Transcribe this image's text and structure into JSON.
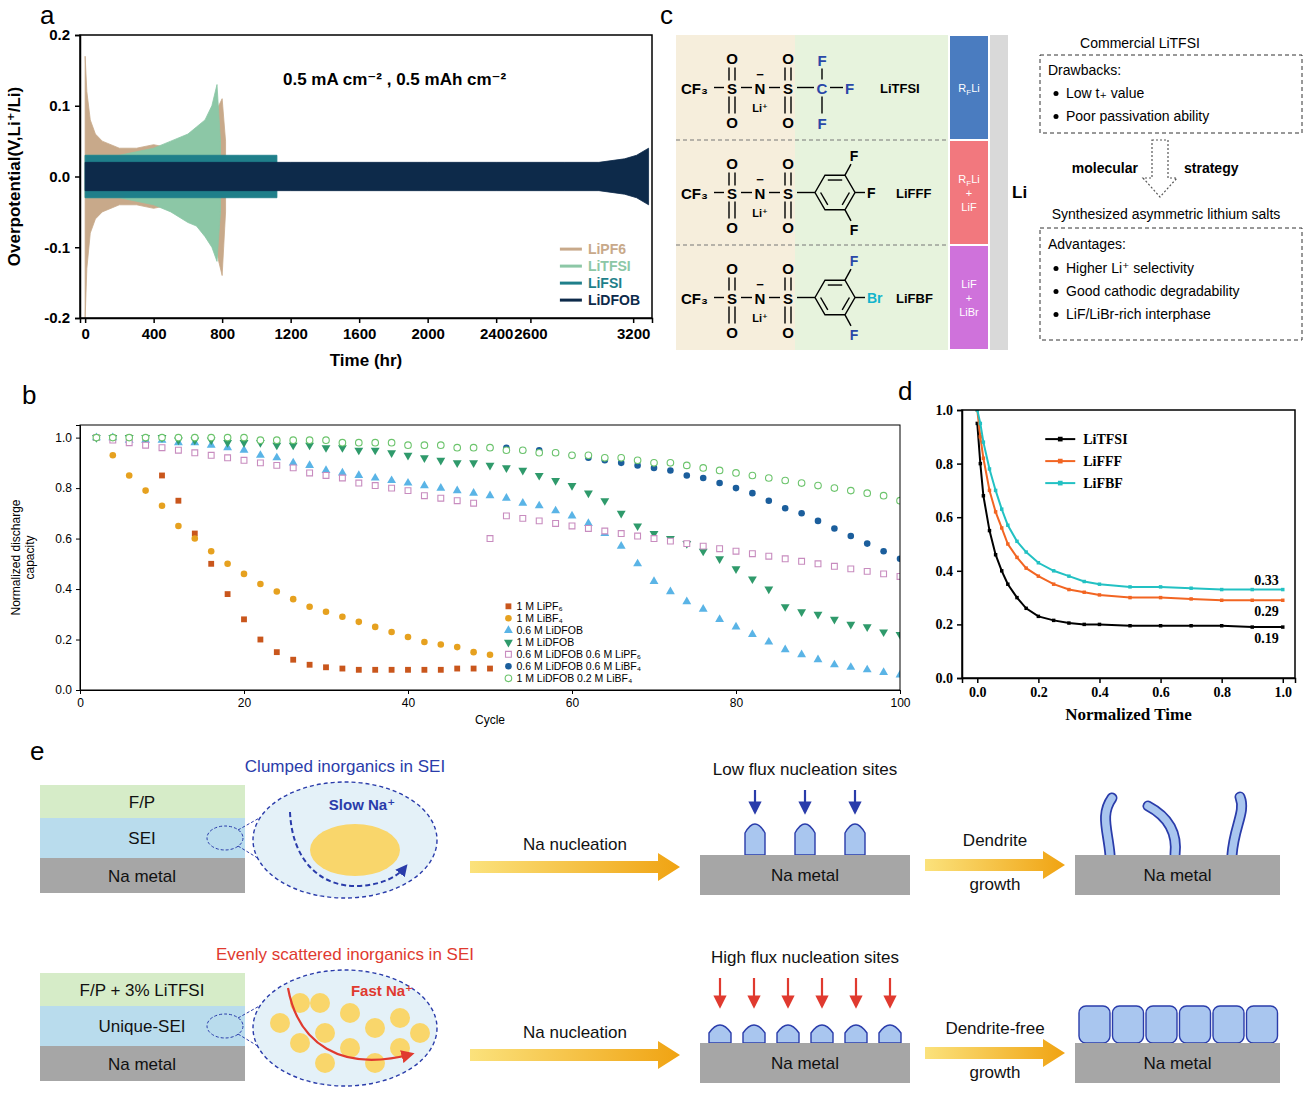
{
  "panel_labels": [
    "a",
    "b",
    "c",
    "d",
    "e"
  ],
  "chart_data": [
    {
      "type": "band",
      "title": "0.5 mA cm⁻² , 0.5 mAh cm⁻²",
      "x_label": "Time (hr)",
      "y_label": "Overpotential(V,Li⁺/Li)",
      "xlim": [
        -30,
        3310
      ],
      "ylim": [
        -0.2,
        0.2
      ],
      "xticks": [
        0,
        400,
        800,
        1200,
        1600,
        2000,
        2400,
        2600,
        3200
      ],
      "yticks": [
        -0.2,
        -0.1,
        {
          "value": 0,
          "label": "0.0"
        },
        0.1,
        0.2
      ],
      "grid": false,
      "legend": "lower right",
      "series": [
        {
          "name": "LiPF6",
          "color": "#c8a98a",
          "x": [
            0,
            10,
            30,
            60,
            100,
            200,
            300,
            400,
            500,
            600,
            700,
            750,
            780,
            800,
            820
          ],
          "values": [
            0.17,
            0.12,
            0.08,
            0.06,
            0.05,
            0.04,
            0.04,
            0.045,
            0.04,
            0.04,
            0.045,
            0.06,
            0.1,
            0.11,
            0.05
          ],
          "lower": [
            -0.2,
            -0.13,
            -0.08,
            -0.06,
            -0.05,
            -0.04,
            -0.04,
            -0.045,
            -0.04,
            -0.045,
            -0.05,
            -0.08,
            -0.12,
            -0.14,
            -0.05
          ]
        },
        {
          "name": "LiTFSI",
          "color": "#8cc7a6",
          "x": [
            0,
            100,
            200,
            300,
            400,
            500,
            600,
            650,
            700,
            740,
            770,
            790
          ],
          "values": [
            0.03,
            0.03,
            0.03,
            0.035,
            0.04,
            0.05,
            0.06,
            0.07,
            0.08,
            0.1,
            0.13,
            0.05
          ],
          "lower": [
            -0.03,
            -0.03,
            -0.03,
            -0.035,
            -0.04,
            -0.05,
            -0.065,
            -0.07,
            -0.085,
            -0.1,
            -0.12,
            -0.05
          ]
        },
        {
          "name": "LiFSI",
          "color": "#1f7f8a",
          "x": [
            0,
            300,
            600,
            900,
            1120
          ],
          "values": [
            0.03,
            0.03,
            0.03,
            0.03,
            0.03
          ],
          "lower": [
            -0.03,
            -0.03,
            -0.03,
            -0.03,
            -0.03
          ]
        },
        {
          "name": "LiDFOB",
          "color": "#0d2a4a",
          "x": [
            0,
            400,
            800,
            1200,
            1600,
            2000,
            2400,
            2800,
            3000,
            3150,
            3220,
            3290
          ],
          "values": [
            0.02,
            0.02,
            0.02,
            0.02,
            0.02,
            0.02,
            0.02,
            0.02,
            0.02,
            0.025,
            0.03,
            0.04
          ],
          "lower": [
            -0.02,
            -0.02,
            -0.02,
            -0.02,
            -0.02,
            -0.02,
            -0.02,
            -0.02,
            -0.02,
            -0.025,
            -0.03,
            -0.04
          ]
        }
      ]
    },
    {
      "type": "scatter",
      "x_label": "Cycle",
      "y_label": "Normalized discharge capacity",
      "xlim": [
        0,
        100
      ],
      "ylim": [
        0,
        1.05
      ],
      "xticks": [
        0,
        20,
        40,
        60,
        80,
        100
      ],
      "yticks": [
        {
          "value": 0,
          "label": "0.0"
        },
        0.2,
        0.4,
        0.6,
        0.8,
        {
          "value": 1,
          "label": "1.0"
        }
      ],
      "grid": false,
      "legend": "lower center",
      "series": [
        {
          "name": "1 M LiPF₆",
          "color": "#c9561c",
          "marker": "square",
          "x": [
            2,
            4,
            6,
            8,
            10,
            12,
            14,
            16,
            18,
            20,
            22,
            24,
            26,
            28,
            30,
            32,
            34,
            36,
            38,
            40,
            42,
            44,
            46,
            48,
            50
          ],
          "values": [
            1,
            1,
            1,
            0.99,
            0.85,
            0.75,
            0.62,
            0.5,
            0.38,
            0.28,
            0.2,
            0.15,
            0.12,
            0.1,
            0.09,
            0.085,
            0.08,
            0.08,
            0.08,
            0.08,
            0.08,
            0.08,
            0.085,
            0.085,
            0.085
          ]
        },
        {
          "name": "1 M LiBF₄",
          "color": "#e6a11f",
          "marker": "circle",
          "x": [
            2,
            4,
            6,
            8,
            10,
            12,
            14,
            16,
            18,
            20,
            22,
            24,
            26,
            28,
            30,
            32,
            34,
            36,
            38,
            40,
            42,
            44,
            46,
            48,
            50
          ],
          "values": [
            1,
            0.93,
            0.85,
            0.79,
            0.73,
            0.65,
            0.6,
            0.55,
            0.5,
            0.46,
            0.42,
            0.39,
            0.36,
            0.33,
            0.31,
            0.29,
            0.27,
            0.25,
            0.23,
            0.21,
            0.19,
            0.18,
            0.17,
            0.15,
            0.14
          ]
        },
        {
          "name": "0.6 M LiDFOB",
          "color": "#5ab4e6",
          "marker": "triangle-up",
          "x": [
            2,
            4,
            6,
            8,
            10,
            12,
            14,
            16,
            18,
            20,
            22,
            24,
            26,
            28,
            30,
            32,
            34,
            36,
            38,
            40,
            42,
            44,
            46,
            48,
            50,
            52,
            54,
            56,
            58,
            60,
            62,
            64,
            66,
            68,
            70,
            72,
            74,
            76,
            78,
            80,
            82,
            84,
            86,
            88,
            90,
            92,
            94,
            96,
            98,
            100
          ],
          "values": [
            1,
            1,
            0.99,
            0.99,
            0.99,
            0.98,
            0.98,
            0.97,
            0.96,
            0.95,
            0.93,
            0.92,
            0.9,
            0.89,
            0.87,
            0.86,
            0.85,
            0.84,
            0.83,
            0.82,
            0.81,
            0.8,
            0.79,
            0.78,
            0.77,
            0.76,
            0.74,
            0.73,
            0.71,
            0.69,
            0.66,
            0.62,
            0.57,
            0.5,
            0.43,
            0.39,
            0.35,
            0.32,
            0.28,
            0.25,
            0.22,
            0.19,
            0.16,
            0.14,
            0.12,
            0.1,
            0.09,
            0.08,
            0.07,
            0.06
          ]
        },
        {
          "name": "1 M LiDFOB",
          "color": "#2f9a6b",
          "marker": "triangle-down",
          "x": [
            2,
            4,
            6,
            8,
            10,
            12,
            14,
            16,
            18,
            20,
            22,
            24,
            26,
            28,
            30,
            32,
            34,
            36,
            38,
            40,
            42,
            44,
            46,
            48,
            50,
            52,
            54,
            56,
            58,
            60,
            62,
            64,
            66,
            68,
            70,
            72,
            74,
            76,
            78,
            80,
            82,
            84,
            86,
            88,
            90,
            92,
            94,
            96,
            98,
            100
          ],
          "values": [
            1,
            1,
            1,
            1,
            1,
            0.99,
            0.99,
            0.99,
            0.98,
            0.98,
            0.98,
            0.97,
            0.97,
            0.97,
            0.96,
            0.96,
            0.95,
            0.95,
            0.94,
            0.93,
            0.92,
            0.91,
            0.9,
            0.9,
            0.89,
            0.88,
            0.87,
            0.85,
            0.83,
            0.81,
            0.78,
            0.75,
            0.7,
            0.65,
            0.62,
            0.6,
            0.58,
            0.55,
            0.52,
            0.48,
            0.44,
            0.4,
            0.33,
            0.31,
            0.3,
            0.28,
            0.26,
            0.25,
            0.23,
            0.22
          ]
        },
        {
          "name": "0.6 M LiDFOB 0.6 M LiPF₆",
          "color": "#c88cbf",
          "marker": "open-square",
          "x": [
            2,
            4,
            6,
            8,
            10,
            12,
            14,
            16,
            18,
            20,
            22,
            24,
            26,
            28,
            30,
            32,
            34,
            36,
            38,
            40,
            42,
            44,
            46,
            48,
            50,
            52,
            54,
            56,
            58,
            60,
            62,
            64,
            66,
            68,
            70,
            72,
            74,
            76,
            78,
            80,
            82,
            84,
            86,
            88,
            90,
            92,
            94,
            96,
            98,
            100
          ],
          "values": [
            1,
            0.99,
            0.98,
            0.97,
            0.96,
            0.95,
            0.94,
            0.93,
            0.92,
            0.91,
            0.9,
            0.89,
            0.88,
            0.86,
            0.85,
            0.84,
            0.82,
            0.81,
            0.8,
            0.79,
            0.77,
            0.76,
            0.75,
            0.74,
            0.6,
            0.69,
            0.68,
            0.67,
            0.66,
            0.65,
            0.64,
            0.63,
            0.62,
            0.61,
            0.6,
            0.59,
            0.58,
            0.57,
            0.56,
            0.55,
            0.54,
            0.53,
            0.52,
            0.51,
            0.5,
            0.49,
            0.48,
            0.47,
            0.46,
            0.45
          ]
        },
        {
          "name": "0.6 M LiDFOB 0.6 M LiBF₄",
          "color": "#1b5e9c",
          "marker": "circle",
          "x": [
            50,
            52,
            54,
            56,
            58,
            60,
            62,
            64,
            66,
            68,
            70,
            72,
            74,
            76,
            78,
            80,
            82,
            84,
            86,
            88,
            90,
            92,
            94,
            96,
            98,
            100
          ],
          "values": [
            0.96,
            0.96,
            0.95,
            0.95,
            0.94,
            0.93,
            0.92,
            0.91,
            0.9,
            0.89,
            0.88,
            0.87,
            0.85,
            0.84,
            0.82,
            0.8,
            0.78,
            0.75,
            0.72,
            0.7,
            0.67,
            0.64,
            0.61,
            0.58,
            0.55,
            0.52
          ]
        },
        {
          "name": "1 M LiDFOB 0.2 M LiBF₄",
          "color": "#6cc46c",
          "marker": "open-circle",
          "x": [
            2,
            4,
            6,
            8,
            10,
            12,
            14,
            16,
            18,
            20,
            22,
            24,
            26,
            28,
            30,
            32,
            34,
            36,
            38,
            40,
            42,
            44,
            46,
            48,
            50,
            52,
            54,
            56,
            58,
            60,
            62,
            64,
            66,
            68,
            70,
            72,
            74,
            76,
            78,
            80,
            82,
            84,
            86,
            88,
            90,
            92,
            94,
            96,
            98,
            100
          ],
          "values": [
            1,
            1,
            1,
            1,
            1,
            1,
            1,
            1,
            1,
            1,
            0.99,
            0.99,
            0.99,
            0.99,
            0.99,
            0.98,
            0.98,
            0.98,
            0.98,
            0.97,
            0.97,
            0.97,
            0.96,
            0.96,
            0.96,
            0.95,
            0.95,
            0.94,
            0.94,
            0.93,
            0.93,
            0.92,
            0.92,
            0.91,
            0.9,
            0.9,
            0.89,
            0.88,
            0.87,
            0.86,
            0.85,
            0.84,
            0.83,
            0.82,
            0.81,
            0.8,
            0.79,
            0.78,
            0.77,
            0.75
          ]
        }
      ]
    },
    {
      "type": "line",
      "x_label": "Normalized Time",
      "xlim": [
        -0.05,
        1.04
      ],
      "ylim": [
        0,
        1
      ],
      "xticks": [
        {
          "value": 0,
          "label": "0.0"
        },
        0.2,
        0.4,
        0.6,
        0.8,
        {
          "value": 1,
          "label": "1.0"
        }
      ],
      "yticks": [
        {
          "value": 0,
          "label": "0.0"
        },
        0.2,
        0.4,
        0.6,
        0.8,
        {
          "value": 1,
          "label": "1.0"
        }
      ],
      "grid": false,
      "legend": "upper center",
      "x": [
        0,
        0.01,
        0.02,
        0.04,
        0.06,
        0.08,
        0.1,
        0.13,
        0.16,
        0.2,
        0.25,
        0.3,
        0.35,
        0.4,
        0.5,
        0.6,
        0.7,
        0.8,
        0.9,
        1
      ],
      "series": [
        {
          "name": "LiTFSI",
          "color": "#000000",
          "marker": "square",
          "values": [
            0.95,
            0.8,
            0.68,
            0.55,
            0.46,
            0.4,
            0.35,
            0.3,
            0.26,
            0.23,
            0.215,
            0.205,
            0.2,
            0.2,
            0.195,
            0.195,
            0.195,
            0.195,
            0.19,
            0.19
          ],
          "end_label": "0.19"
        },
        {
          "name": "LiFFF",
          "color": "#f26522",
          "marker": "square",
          "values": [
            1,
            0.9,
            0.82,
            0.7,
            0.62,
            0.56,
            0.5,
            0.45,
            0.41,
            0.38,
            0.35,
            0.33,
            0.32,
            0.31,
            0.3,
            0.3,
            0.295,
            0.29,
            0.29,
            0.29
          ],
          "end_label": "0.29"
        },
        {
          "name": "LiFBF",
          "color": "#22c1c3",
          "marker": "square",
          "values": [
            1,
            0.95,
            0.88,
            0.78,
            0.7,
            0.63,
            0.57,
            0.51,
            0.47,
            0.43,
            0.4,
            0.38,
            0.36,
            0.35,
            0.34,
            0.34,
            0.335,
            0.33,
            0.33,
            0.33
          ],
          "end_label": "0.33"
        }
      ]
    }
  ],
  "diagram_c": {
    "atoms": {
      "cf3": "CF₃",
      "s": "S",
      "o": "O",
      "n": "N",
      "charge": "−",
      "li": "Li⁺"
    },
    "molecules": [
      {
        "name": "LiTFSI",
        "center": "C",
        "substituents": [
          "F",
          "F",
          "F"
        ],
        "interphase": [
          [
            "R",
            {
              "sub": "F"
            },
            "Li"
          ]
        ]
      },
      {
        "name": "LiFFF",
        "substituents": [
          "F",
          "F",
          "F"
        ],
        "interphase": [
          [
            "R",
            {
              "sub": "F"
            },
            "Li"
          ],
          [
            "+"
          ],
          [
            "LiF"
          ]
        ]
      },
      {
        "name": "LiFBF",
        "substituents": [
          "F",
          "Br",
          "F"
        ],
        "interphase": [
          [
            "LiF"
          ],
          [
            "+"
          ],
          [
            "LiBr"
          ]
        ]
      }
    ],
    "substrate": "Li",
    "notes": {
      "commercial": "Commercial LiTFSI",
      "drawbacks_title": "Drawbacks:",
      "drawbacks": [
        "Low t₊ value",
        "Poor passivation ability"
      ],
      "strategy": [
        "molecular",
        "strategy"
      ],
      "synthesized": "Synthesized asymmetric lithium salts",
      "advantages_title": "Advantages:",
      "advantages": [
        "Higher Li⁺ selectivity",
        "Good cathodic degradability",
        "LiF/LiBr-rich interphase"
      ]
    }
  },
  "diagram_e": {
    "rows": [
      {
        "title": "Clumped inorganics in SEI",
        "layers": [
          "F/P",
          "SEI",
          "Na metal"
        ],
        "ion": "Slow Na⁺",
        "nucleation": "Na nucleation",
        "sites": "Low flux nucleation sites",
        "metal": "Na metal",
        "growth": "Dendrite growth"
      },
      {
        "title": "Evenly scattered inorganics in SEI",
        "layers": [
          "F/P + 3% LiTFSI",
          "Unique-SEI",
          "Na metal"
        ],
        "ion": "Fast Na⁺",
        "nucleation": "Na nucleation",
        "sites": "High flux nucleation sites",
        "metal": "Na metal",
        "growth": "Dendrite-free growth"
      }
    ]
  }
}
